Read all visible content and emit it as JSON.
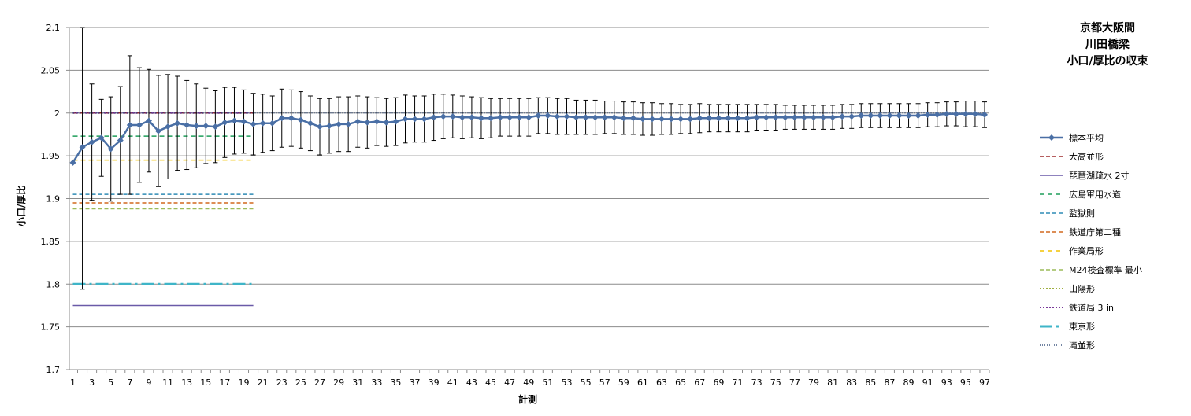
{
  "chart_data": {
    "type": "line",
    "title": [
      "京都大阪間",
      "川田橋梁",
      "小口/厚比の収束"
    ],
    "xlabel": "計測",
    "ylabel": "小口/厚比",
    "ylim": [
      1.7,
      2.1
    ],
    "yticks": [
      "1.7",
      "1.75",
      "1.8",
      "1.85",
      "1.9",
      "1.95",
      "2",
      "2.05",
      "2.1"
    ],
    "xlim": [
      1,
      97
    ],
    "xtick_step": 2,
    "grid": "horizontal",
    "legend_position": "right",
    "series": [
      {
        "name": "標本平均",
        "color": "#4A6FA5",
        "marker": "diamond",
        "x_start": 1,
        "values": [
          1.942,
          1.96,
          1.966,
          1.971,
          1.958,
          1.968,
          1.986,
          1.986,
          1.991,
          1.979,
          1.984,
          1.988,
          1.986,
          1.985,
          1.985,
          1.984,
          1.989,
          1.991,
          1.99,
          1.987,
          1.988,
          1.988,
          1.994,
          1.994,
          1.992,
          1.988,
          1.984,
          1.985,
          1.987,
          1.987,
          1.99,
          1.989,
          1.99,
          1.989,
          1.99,
          1.993,
          1.993,
          1.993,
          1.995,
          1.996,
          1.996,
          1.995,
          1.995,
          1.994,
          1.994,
          1.995,
          1.995,
          1.995,
          1.995,
          1.997,
          1.997,
          1.996,
          1.996,
          1.995,
          1.995,
          1.995,
          1.995,
          1.995,
          1.994,
          1.994,
          1.993,
          1.993,
          1.993,
          1.993,
          1.993,
          1.993,
          1.994,
          1.994,
          1.994,
          1.994,
          1.994,
          1.994,
          1.995,
          1.995,
          1.995,
          1.995,
          1.995,
          1.995,
          1.995,
          1.995,
          1.995,
          1.996,
          1.996,
          1.997,
          1.997,
          1.997,
          1.997,
          1.997,
          1.997,
          1.997,
          1.998,
          1.998,
          1.999,
          1.999,
          1.999,
          1.999,
          1.998
        ],
        "error_upper": [
          null,
          2.1,
          2.034,
          2.016,
          2.019,
          2.031,
          2.067,
          2.053,
          2.051,
          2.044,
          2.045,
          2.043,
          2.038,
          2.034,
          2.029,
          2.026,
          2.03,
          2.03,
          2.027,
          2.023,
          2.022,
          2.02,
          2.028,
          2.027,
          2.025,
          2.02,
          2.017,
          2.017,
          2.019,
          2.019,
          2.02,
          2.019,
          2.018,
          2.017,
          2.018,
          2.021,
          2.02,
          2.02,
          2.022,
          2.022,
          2.021,
          2.02,
          2.019,
          2.018,
          2.017,
          2.017,
          2.017,
          2.017,
          2.017,
          2.018,
          2.018,
          2.017,
          2.017,
          2.015,
          2.015,
          2.015,
          2.014,
          2.014,
          2.013,
          2.013,
          2.012,
          2.012,
          2.011,
          2.011,
          2.01,
          2.01,
          2.011,
          2.01,
          2.01,
          2.01,
          2.01,
          2.01,
          2.01,
          2.01,
          2.01,
          2.009,
          2.009,
          2.009,
          2.009,
          2.009,
          2.009,
          2.01,
          2.01,
          2.011,
          2.011,
          2.011,
          2.011,
          2.011,
          2.011,
          2.011,
          2.012,
          2.012,
          2.013,
          2.013,
          2.014,
          2.014,
          2.013
        ],
        "error_lower": [
          null,
          1.794,
          1.898,
          1.926,
          1.897,
          1.905,
          1.905,
          1.919,
          1.931,
          1.914,
          1.923,
          1.933,
          1.934,
          1.936,
          1.941,
          1.942,
          1.948,
          1.952,
          1.953,
          1.951,
          1.954,
          1.956,
          1.96,
          1.961,
          1.959,
          1.956,
          1.951,
          1.953,
          1.955,
          1.955,
          1.96,
          1.959,
          1.962,
          1.961,
          1.962,
          1.965,
          1.966,
          1.966,
          1.968,
          1.97,
          1.971,
          1.97,
          1.971,
          1.97,
          1.971,
          1.973,
          1.973,
          1.973,
          1.973,
          1.976,
          1.976,
          1.975,
          1.975,
          1.975,
          1.975,
          1.975,
          1.976,
          1.976,
          1.975,
          1.975,
          1.974,
          1.974,
          1.975,
          1.975,
          1.976,
          1.976,
          1.977,
          1.978,
          1.978,
          1.978,
          1.978,
          1.978,
          1.98,
          1.98,
          1.98,
          1.981,
          1.981,
          1.981,
          1.981,
          1.981,
          1.981,
          1.982,
          1.982,
          1.983,
          1.983,
          1.983,
          1.983,
          1.983,
          1.983,
          1.983,
          1.984,
          1.984,
          1.985,
          1.985,
          1.984,
          1.984,
          1.983
        ]
      },
      {
        "name": "大高並形",
        "color": "#9E2A2B",
        "dash": "5,3",
        "width": 1.5,
        "x_range": [
          1,
          20
        ],
        "value": 2.0
      },
      {
        "name": "琵琶湖疏水 2寸",
        "color": "#6A5AA8",
        "dash": "",
        "width": 1.5,
        "x_range": [
          1,
          20
        ],
        "value": 1.775
      },
      {
        "name": "広島軍用水道",
        "color": "#1E9E5A",
        "dash": "6,4",
        "width": 1.5,
        "x_range": [
          1,
          20
        ],
        "value": 1.973
      },
      {
        "name": "監獄則",
        "color": "#2E8BB5",
        "dash": "5,3",
        "width": 1.5,
        "x_range": [
          1,
          20
        ],
        "value": 1.905
      },
      {
        "name": "鉄道庁第二種",
        "color": "#D2691E",
        "dash": "5,3",
        "width": 1.5,
        "x_range": [
          1,
          20
        ],
        "value": 1.895
      },
      {
        "name": "作業局形",
        "color": "#F2C200",
        "dash": "6,4",
        "width": 1.5,
        "x_range": [
          1,
          20
        ],
        "value": 1.945
      },
      {
        "name": "M24検査標準 最小",
        "color": "#9BBB59",
        "dash": "5,3",
        "width": 1.5,
        "x_range": [
          1,
          20
        ],
        "value": 1.888
      },
      {
        "name": "山陽形",
        "color": "#A0B040",
        "dash": "2,2",
        "width": 2,
        "x_range": [
          1,
          20
        ],
        "value": 2.0
      },
      {
        "name": "鉄道局 3 in",
        "color": "#7A3A9A",
        "dash": "2,2",
        "width": 2,
        "x_range": [
          1,
          20
        ],
        "value": 2.0
      },
      {
        "name": "東京形",
        "color": "#3FB5C8",
        "dash": "16,5,3,5",
        "width": 3,
        "x_range": [
          1,
          20
        ],
        "value": 1.8
      },
      {
        "name": "滝並形",
        "color": "#1F3A6B",
        "dash": "1,2",
        "width": 1.2,
        "x_range": [
          1,
          97
        ],
        "value": 2.0
      }
    ]
  }
}
